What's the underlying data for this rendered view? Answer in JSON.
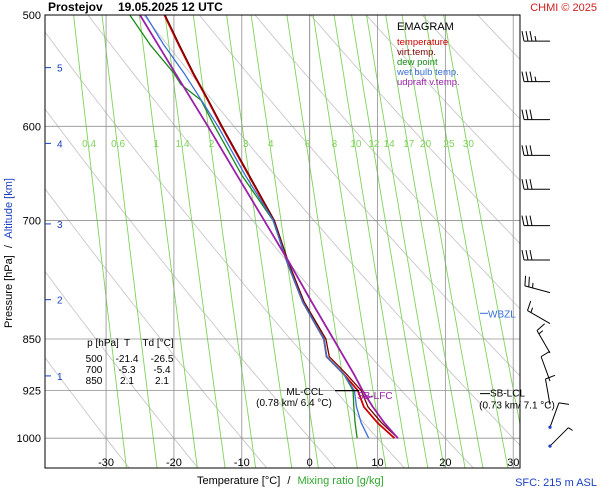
{
  "header": {
    "station": "Prostejov",
    "datetime": "19.05.2025 12 UTC",
    "credit": "CHMI © 2025"
  },
  "colors": {
    "temperature": "#cc0000",
    "virt_temp": "#7a0000",
    "dew_point": "#1a8a1a",
    "wet_bulb": "#3a6fd8",
    "updraft": "#9b1fa8",
    "mixing_ratio": "#7fd35a",
    "adiabat": "#c8c8c8",
    "grid": "#909090",
    "axis_blue": "#1a3fc0",
    "credit": "#d02020"
  },
  "chart_data": {
    "type": "line",
    "title": "EMAGRAM",
    "xlabel": "Temperature [°C]",
    "xlabel_sep": "/",
    "xlabel2": "Mixing ratio [g/kg]",
    "ylabel": "Pressure [hPa]",
    "ylabel_sep": "/",
    "ylabel2": "Altitude [km]",
    "y_scale": "log",
    "xlim": [
      -39,
      31
    ],
    "ylim": [
      1050,
      500
    ],
    "x_ticks": [
      -30,
      -20,
      -10,
      0,
      10,
      20,
      30
    ],
    "pressure_ticks": [
      500,
      600,
      700,
      850,
      925,
      1000
    ],
    "altitude_ticks": [
      {
        "km": "5",
        "p": 545
      },
      {
        "km": "4",
        "p": 617
      },
      {
        "km": "3",
        "p": 704
      },
      {
        "km": "2",
        "p": 797
      },
      {
        "km": "1",
        "p": 903
      }
    ],
    "mixing_ratio_lines": [
      {
        "label": "0.4",
        "value": 0.4
      },
      {
        "label": "0.6",
        "value": 0.6
      },
      {
        "label": "1",
        "value": 1
      },
      {
        "label": "1.4",
        "value": 1.4
      },
      {
        "label": "2",
        "value": 2
      },
      {
        "label": "3",
        "value": 3
      },
      {
        "label": "4",
        "value": 4
      },
      {
        "label": "6",
        "value": 6
      },
      {
        "label": "8",
        "value": 8
      },
      {
        "label": "10",
        "value": 10
      },
      {
        "label": "12",
        "value": 12
      },
      {
        "label": "14",
        "value": 14
      },
      {
        "label": "17",
        "value": 17
      },
      {
        "label": "20",
        "value": 20
      },
      {
        "label": "25",
        "value": 25
      },
      {
        "label": "30",
        "value": 30
      }
    ],
    "legend": {
      "title": "EMAGRAM",
      "placement": "top-right",
      "items": [
        {
          "label": "temperature",
          "color": "#cc0000"
        },
        {
          "label": "virt.temp.",
          "color": "#7a0000"
        },
        {
          "label": "dew point",
          "color": "#1a8a1a"
        },
        {
          "label": "wet bulb temp.",
          "color": "#3a6fd8"
        },
        {
          "label": "udpraft v.temp.",
          "color": "#9b1fa8"
        }
      ]
    },
    "series": [
      {
        "name": "temperature",
        "color": "#cc0000",
        "points": [
          [
            1000,
            12.5
          ],
          [
            975,
            10.0
          ],
          [
            950,
            8.0
          ],
          [
            925,
            7.1
          ],
          [
            900,
            5.0
          ],
          [
            875,
            2.5
          ],
          [
            850,
            2.1
          ],
          [
            800,
            -1.0
          ],
          [
            750,
            -3.3
          ],
          [
            700,
            -5.3
          ],
          [
            650,
            -9.0
          ],
          [
            600,
            -13.0
          ],
          [
            575,
            -15.0
          ],
          [
            550,
            -17.2
          ],
          [
            525,
            -19.3
          ],
          [
            500,
            -21.4
          ]
        ]
      },
      {
        "name": "virt.temp.",
        "color": "#7a0000",
        "points": [
          [
            1000,
            13.0
          ],
          [
            975,
            10.6
          ],
          [
            950,
            8.6
          ],
          [
            925,
            7.6
          ],
          [
            900,
            5.4
          ],
          [
            875,
            2.9
          ],
          [
            850,
            2.4
          ],
          [
            800,
            -0.8
          ],
          [
            750,
            -3.1
          ],
          [
            700,
            -5.2
          ],
          [
            650,
            -8.9
          ],
          [
            600,
            -12.9
          ],
          [
            575,
            -14.9
          ],
          [
            550,
            -17.1
          ],
          [
            525,
            -19.2
          ],
          [
            500,
            -21.3
          ]
        ]
      },
      {
        "name": "dew point",
        "color": "#1a8a1a",
        "points": [
          [
            1000,
            7.0
          ],
          [
            975,
            6.7
          ],
          [
            950,
            6.5
          ],
          [
            925,
            6.4
          ],
          [
            900,
            5.0
          ],
          [
            875,
            2.5
          ],
          [
            850,
            2.1
          ],
          [
            800,
            -1.0
          ],
          [
            750,
            -3.3
          ],
          [
            700,
            -5.4
          ],
          [
            650,
            -10.0
          ],
          [
            600,
            -14.0
          ],
          [
            575,
            -16.0
          ],
          [
            560,
            -19.0
          ],
          [
            550,
            -20.0
          ],
          [
            525,
            -23.5
          ],
          [
            500,
            -26.5
          ]
        ]
      },
      {
        "name": "wet bulb temp.",
        "color": "#3a6fd8",
        "points": [
          [
            1000,
            8.7
          ],
          [
            975,
            7.6
          ],
          [
            950,
            6.9
          ],
          [
            925,
            6.6
          ],
          [
            900,
            5.0
          ],
          [
            875,
            2.5
          ],
          [
            850,
            2.1
          ],
          [
            800,
            -1.0
          ],
          [
            750,
            -3.3
          ],
          [
            700,
            -5.35
          ],
          [
            650,
            -9.5
          ],
          [
            600,
            -13.5
          ],
          [
            550,
            -18.5
          ],
          [
            525,
            -21.5
          ],
          [
            500,
            -24.2
          ]
        ]
      },
      {
        "name": "udpraft v.temp.",
        "color": "#9b1fa8",
        "points": [
          [
            1000,
            13.0
          ],
          [
            975,
            11.0
          ],
          [
            950,
            9.3
          ],
          [
            925,
            7.8
          ],
          [
            900,
            6.5
          ],
          [
            850,
            3.5
          ],
          [
            800,
            0.3
          ],
          [
            750,
            -3.0
          ],
          [
            700,
            -6.7
          ],
          [
            650,
            -10.7
          ],
          [
            600,
            -15.0
          ],
          [
            550,
            -19.8
          ],
          [
            500,
            -25.0
          ]
        ]
      }
    ],
    "table": {
      "headers": [
        "p [hPa]",
        "T",
        "Td [°C]"
      ],
      "rows": [
        [
          "500",
          "-21.4",
          "-26.5"
        ],
        [
          "700",
          "-5.3",
          "-5.4"
        ],
        [
          "850",
          "2.1",
          "2.1"
        ]
      ]
    },
    "annotations": {
      "ml_ccl": {
        "label": "ML-CCL",
        "detail": "(0.78 km/ 6.4 °C)",
        "p": 925,
        "t": 6.4
      },
      "sb_lfc": {
        "label": "SB-LFC",
        "p": 930,
        "t": 7.2
      },
      "sb_lcl": {
        "label": "SB-LCL",
        "detail": "(0.73 km/ 7.1 °C)",
        "p": 925,
        "t": 7.1
      },
      "wbzl": {
        "label": "WBZL",
        "p": 815
      }
    },
    "wind_barbs": [
      {
        "p": 510,
        "dir": 270,
        "kt": 35
      },
      {
        "p": 545,
        "dir": 270,
        "kt": 35
      },
      {
        "p": 580,
        "dir": 270,
        "kt": 30
      },
      {
        "p": 615,
        "dir": 270,
        "kt": 30
      },
      {
        "p": 650,
        "dir": 270,
        "kt": 30
      },
      {
        "p": 690,
        "dir": 270,
        "kt": 30
      },
      {
        "p": 730,
        "dir": 270,
        "kt": 30
      },
      {
        "p": 770,
        "dir": 285,
        "kt": 25
      },
      {
        "p": 810,
        "dir": 300,
        "kt": 15
      },
      {
        "p": 850,
        "dir": 330,
        "kt": 15
      },
      {
        "p": 890,
        "dir": 340,
        "kt": 10
      },
      {
        "p": 925,
        "dir": 350,
        "kt": 10
      },
      {
        "p": 960,
        "dir": 20,
        "kt": 10
      },
      {
        "p": 990,
        "dir": 45,
        "kt": 5
      }
    ],
    "surface": "SFC: 215 m ASL"
  }
}
